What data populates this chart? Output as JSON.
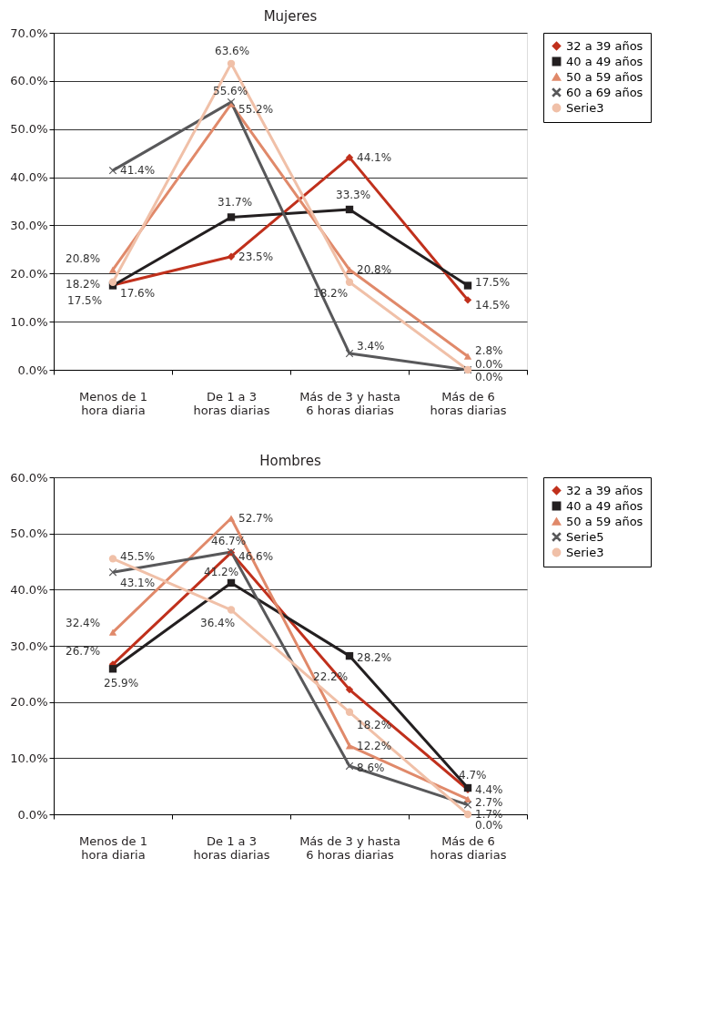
{
  "chart_data": [
    {
      "type": "line",
      "title": "Mujeres",
      "categories": [
        "Menos de 1 hora diaria",
        "De 1 a 3 horas diarias",
        "Más de 3 y hasta 6 horas diarias",
        "Más de 6 horas diarias"
      ],
      "ylim": [
        0,
        70
      ],
      "yticks": [
        {
          "value": 0,
          "label": "0.0%"
        },
        {
          "value": 10,
          "label": "10.0%"
        },
        {
          "value": 20,
          "label": "20.0%"
        },
        {
          "value": 30,
          "label": "30.0%"
        },
        {
          "value": 40,
          "label": "40.0%"
        },
        {
          "value": 50,
          "label": "50.0%"
        },
        {
          "value": 60,
          "label": "60.0%"
        },
        {
          "value": 70,
          "label": "70.0%"
        }
      ],
      "grid": "y",
      "legend": "right",
      "series": [
        {
          "name": "32 a 39 años",
          "color": "#c0301c",
          "marker": "diamond",
          "values": [
            17.6,
            23.5,
            44.1,
            14.5
          ],
          "value_labels": [
            "17.6%",
            "23.5%",
            "44.1%",
            "14.5%"
          ]
        },
        {
          "name": "40 a 49 años",
          "color": "#231f20",
          "marker": "square",
          "values": [
            17.5,
            31.7,
            33.3,
            17.5
          ],
          "value_labels": [
            "17.5%",
            "31.7%",
            "33.3%",
            "17.5%"
          ]
        },
        {
          "name": "50 a 59 años",
          "color": "#e0896a",
          "marker": "triangle",
          "values": [
            20.8,
            55.2,
            20.8,
            2.8
          ],
          "value_labels": [
            "20.8%",
            "55.2%",
            "20.8%",
            "2.8%"
          ]
        },
        {
          "name": "60 a 69 años",
          "color": "#58585a",
          "marker": "cross",
          "values": [
            41.4,
            55.6,
            3.4,
            0.0
          ],
          "value_labels": [
            "41.4%",
            "55.6%",
            "3.4%",
            "0.0%"
          ]
        },
        {
          "name": "Serie3",
          "color": "#f0c0a8",
          "marker": "circle",
          "values": [
            18.2,
            63.6,
            18.2,
            0.0
          ],
          "value_labels": [
            "18.2%",
            "63.6%",
            "18.2%",
            "0.0%"
          ]
        }
      ]
    },
    {
      "type": "line",
      "title": "Hombres",
      "categories": [
        "Menos de 1 hora diaria",
        "De 1 a 3 horas diarias",
        "Más de 3 y hasta 6 horas diarias",
        "Más de 6 horas diarias"
      ],
      "ylim": [
        0,
        60
      ],
      "yticks": [
        {
          "value": 0,
          "label": "0.0%"
        },
        {
          "value": 10,
          "label": "10.0%"
        },
        {
          "value": 20,
          "label": "20.0%"
        },
        {
          "value": 30,
          "label": "30.0%"
        },
        {
          "value": 40,
          "label": "40.0%"
        },
        {
          "value": 50,
          "label": "50.0%"
        },
        {
          "value": 60,
          "label": "60.0%"
        }
      ],
      "grid": "y",
      "legend": "right",
      "series": [
        {
          "name": "32 a 39 años",
          "color": "#c0301c",
          "marker": "diamond",
          "values": [
            26.7,
            46.6,
            22.2,
            4.4
          ],
          "value_labels": [
            "26.7%",
            "46.6%",
            "22.2%",
            "4.4%"
          ]
        },
        {
          "name": "40 a 49 años",
          "color": "#231f20",
          "marker": "square",
          "values": [
            25.9,
            41.2,
            28.2,
            4.7
          ],
          "value_labels": [
            "25.9%",
            "41.2%",
            "28.2%",
            "4.7%"
          ]
        },
        {
          "name": "50 a 59 años",
          "color": "#e0896a",
          "marker": "triangle",
          "values": [
            32.4,
            52.7,
            12.2,
            2.7
          ],
          "value_labels": [
            "32.4%",
            "52.7%",
            "12.2%",
            "2.7%"
          ]
        },
        {
          "name": "Serie5",
          "color": "#58585a",
          "marker": "cross",
          "values": [
            43.1,
            46.7,
            8.6,
            1.7
          ],
          "value_labels": [
            "43.1%",
            "46.7%",
            "8.6%",
            "1.7%"
          ]
        },
        {
          "name": "Serie3",
          "color": "#f0c0a8",
          "marker": "circle",
          "values": [
            45.5,
            36.4,
            18.2,
            0.0
          ],
          "value_labels": [
            "45.5%",
            "36.4%",
            "18.2%",
            "0.0%"
          ]
        }
      ]
    }
  ]
}
